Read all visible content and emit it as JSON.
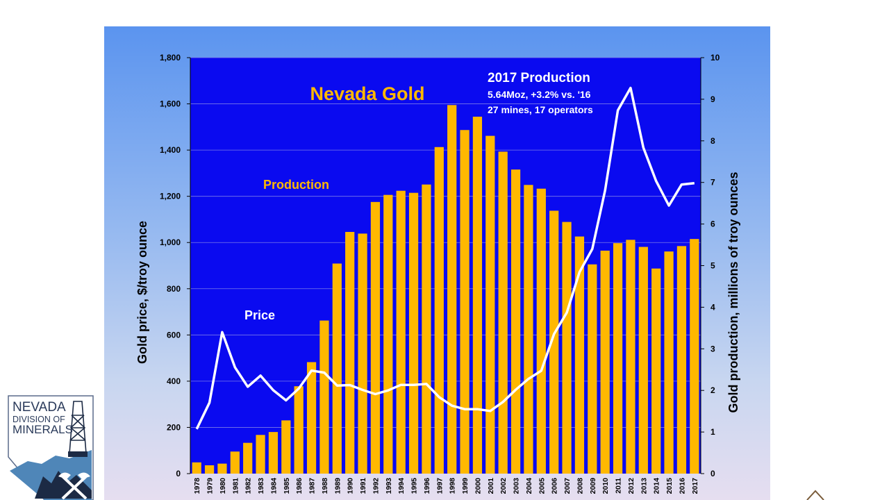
{
  "chart_data": {
    "type": "bar+line",
    "title": "Nevada Gold",
    "annotation": {
      "heading": "2017 Production",
      "line1": "5.64Moz, +3.2% vs. '16",
      "line2": "27 mines, 17 operators"
    },
    "series_labels": {
      "production": "Production",
      "price": "Price"
    },
    "ylabel_left": "Gold price, $/troy ounce",
    "ylabel_right": "Gold production, millions of troy ounces",
    "ylim_left": [
      0,
      1800
    ],
    "ylim_right": [
      0,
      10
    ],
    "left_ticks": [
      "0",
      "200",
      "400",
      "600",
      "800",
      "1,000",
      "1,200",
      "1,400",
      "1,600",
      "1,800"
    ],
    "right_ticks": [
      "0",
      "1",
      "2",
      "3",
      "4",
      "5",
      "6",
      "7",
      "8",
      "9",
      "10"
    ],
    "categories": [
      "1978",
      "1979",
      "1980",
      "1981",
      "1982",
      "1983",
      "1984",
      "1985",
      "1986",
      "1987",
      "1988",
      "1989",
      "1990",
      "1991",
      "1992",
      "1993",
      "1994",
      "1995",
      "1996",
      "1997",
      "1998",
      "1999",
      "2000",
      "2001",
      "2002",
      "2003",
      "2004",
      "2005",
      "2006",
      "2007",
      "2008",
      "2009",
      "2010",
      "2011",
      "2012",
      "2013",
      "2014",
      "2015",
      "2016",
      "2017"
    ],
    "production_moz": [
      0.27,
      0.2,
      0.24,
      0.53,
      0.74,
      0.93,
      1.0,
      1.28,
      2.1,
      2.68,
      3.68,
      5.05,
      5.81,
      5.77,
      6.53,
      6.7,
      6.8,
      6.75,
      6.95,
      7.85,
      8.86,
      8.26,
      8.58,
      8.12,
      7.74,
      7.31,
      6.94,
      6.85,
      6.32,
      6.05,
      5.7,
      5.03,
      5.36,
      5.54,
      5.62,
      5.45,
      4.93,
      5.34,
      5.47,
      5.64
    ],
    "price_usd": [
      193,
      307,
      612,
      460,
      376,
      424,
      361,
      317,
      368,
      446,
      437,
      381,
      383,
      362,
      344,
      360,
      384,
      384,
      388,
      331,
      294,
      279,
      279,
      271,
      310,
      363,
      410,
      445,
      604,
      697,
      872,
      972,
      1225,
      1572,
      1669,
      1411,
      1266,
      1160,
      1251,
      1257
    ]
  },
  "colors": {
    "plot_background": "#0a0af0",
    "bar": "#ffb800",
    "price_line": "#ffffff",
    "title": "#ffb800",
    "production_label": "#ffb800",
    "price_label": "#ffffff",
    "annotation_text": "#ffffff",
    "gridline": "#7a7ae8"
  },
  "logo": {
    "line1": "NEVADA",
    "line2": "DIVISION OF",
    "line3": "MINERALS"
  }
}
